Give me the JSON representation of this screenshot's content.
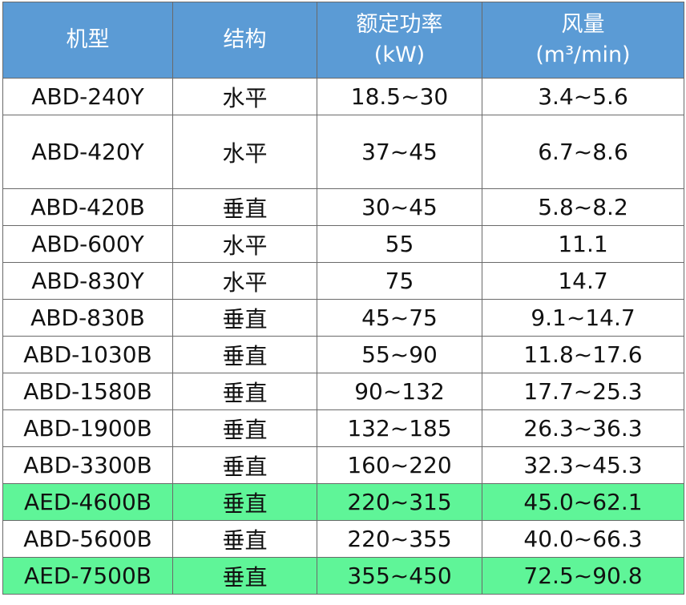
{
  "table": {
    "headers": {
      "model": "机型",
      "structure": "结构",
      "power_line1": "额定功率",
      "power_line2": "(kW)",
      "flow_line1": "风量",
      "flow_line2": "(m³/min)"
    },
    "rows": [
      {
        "model": "ABD-240Y",
        "structure": "水平",
        "power": "18.5~30",
        "flow": "3.4~5.6",
        "highlight": false
      },
      {
        "model": "ABD-420Y",
        "structure": "水平",
        "power": "37~45",
        "flow": "6.7~8.6",
        "highlight": false
      },
      {
        "model": "ABD-420B",
        "structure": "垂直",
        "power": "30~45",
        "flow": "5.8~8.2",
        "highlight": false
      },
      {
        "model": "ABD-600Y",
        "structure": "水平",
        "power": "55",
        "flow": "11.1",
        "highlight": false
      },
      {
        "model": "ABD-830Y",
        "structure": "水平",
        "power": "75",
        "flow": "14.7",
        "highlight": false
      },
      {
        "model": "ABD-830B",
        "structure": "垂直",
        "power": "45~75",
        "flow": "9.1~14.7",
        "highlight": false
      },
      {
        "model": "ABD-1030B",
        "structure": "垂直",
        "power": "55~90",
        "flow": "11.8~17.6",
        "highlight": false
      },
      {
        "model": "ABD-1580B",
        "structure": "垂直",
        "power": "90~132",
        "flow": "17.7~25.3",
        "highlight": false
      },
      {
        "model": "ABD-1900B",
        "structure": "垂直",
        "power": "132~185",
        "flow": "26.3~36.3",
        "highlight": false
      },
      {
        "model": "ABD-3300B",
        "structure": "垂直",
        "power": "160~220",
        "flow": "32.3~45.3",
        "highlight": false
      },
      {
        "model": "AED-4600B",
        "structure": "垂直",
        "power": "220~315",
        "flow": "45.0~62.1",
        "highlight": true
      },
      {
        "model": "ABD-5600B",
        "structure": "垂直",
        "power": "220~355",
        "flow": "40.0~66.3",
        "highlight": false
      },
      {
        "model": "AED-7500B",
        "structure": "垂直",
        "power": "355~450",
        "flow": "72.5~90.8",
        "highlight": true
      }
    ]
  },
  "colors": {
    "header_bg": "#5b9bd5",
    "header_text": "#ffffff",
    "highlight_bg": "#5ff598",
    "border": "#6a6a6a"
  }
}
